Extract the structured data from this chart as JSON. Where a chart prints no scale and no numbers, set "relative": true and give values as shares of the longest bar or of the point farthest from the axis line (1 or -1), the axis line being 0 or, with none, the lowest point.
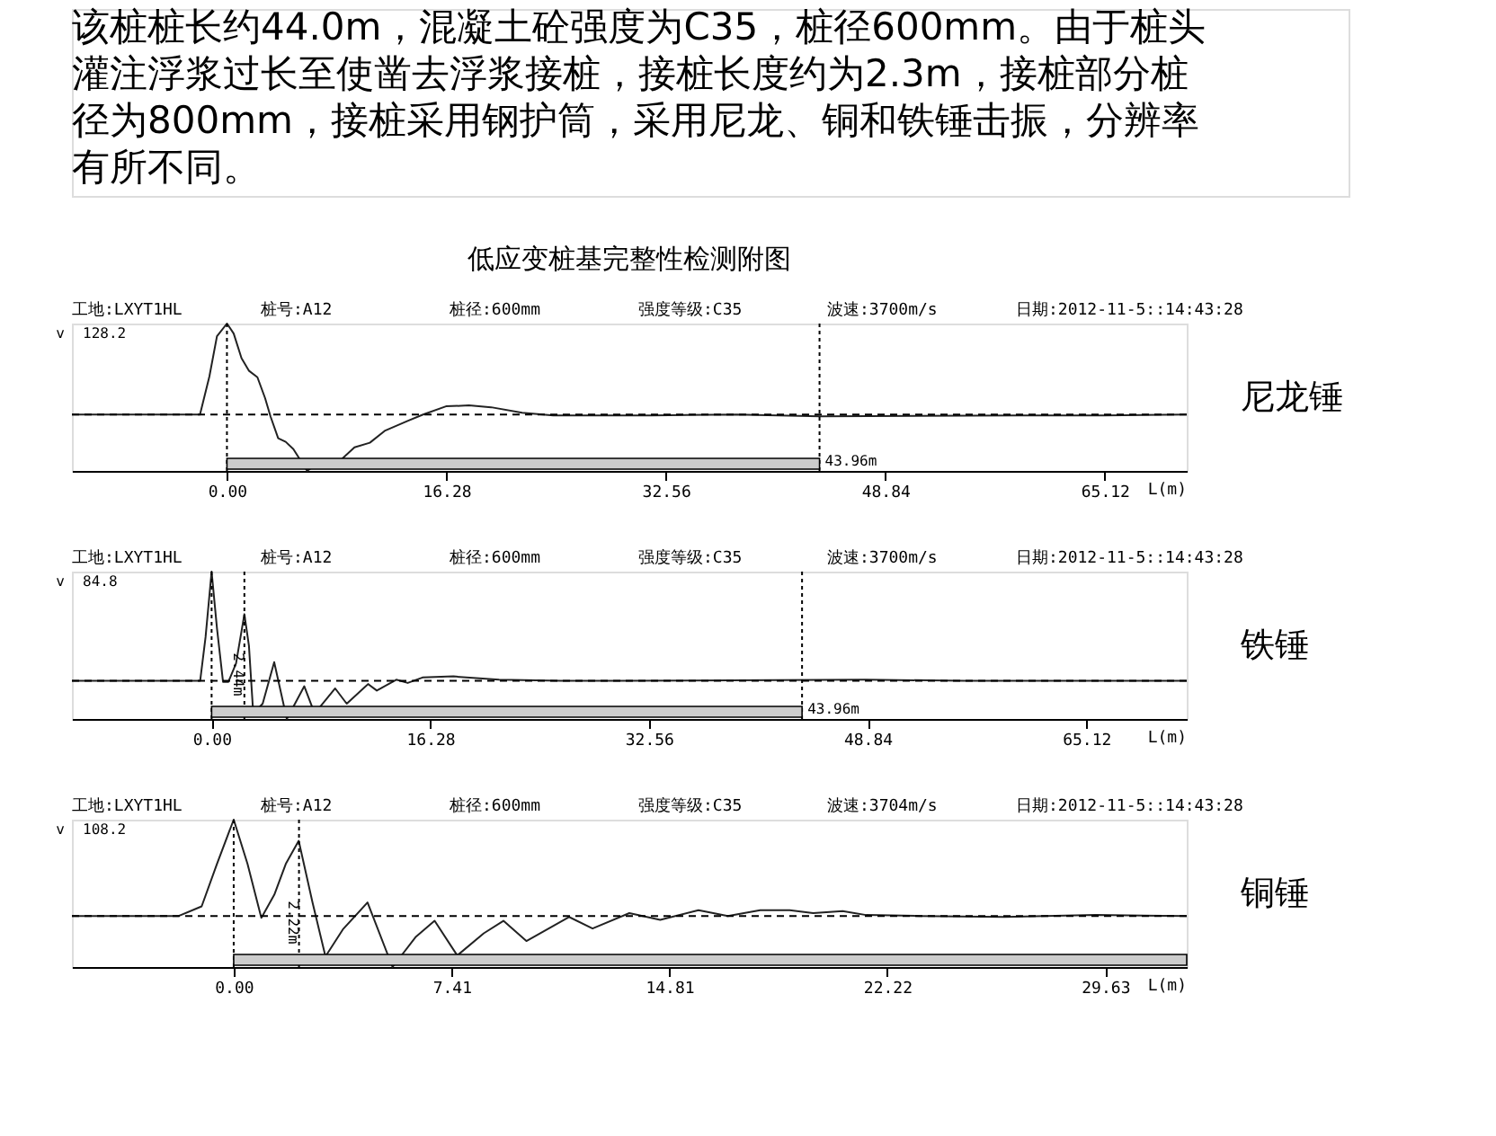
{
  "chart_data": [
    {
      "type": "other",
      "annotations": [
        "该桩桩长约44.0m，混凝土砼强度为C35，桩径600mm。由于桩头",
        "灌注浮浆过长至使凿去浮浆接桩，接桩长度约为2.3m，接桩部分桩",
        "径为800mm，接桩采用钢护筒，采用尼龙、铜和铁锤击振，分辨率",
        "有所不同。"
      ]
    },
    {
      "type": "line",
      "title": "低应变桩基完整性检测附图",
      "relative": true,
      "xlabel": "L(m)",
      "ylabel": "v",
      "annotations": [
        "工地:LXYT1HL",
        "桩号:A12",
        "桩径:600mm",
        "强度等级:C35",
        "波速:3700m/s",
        "日期:2012-11-5::14:43:28",
        "128.2",
        "尼龙锤"
      ],
      "xlim": [
        -11.5,
        71.2
      ],
      "xticks": [
        {
          "value": 0,
          "label": "0.00"
        },
        16.28,
        32.56,
        48.84,
        65.12
      ],
      "grid": false,
      "marker": "none",
      "line_style": "solid",
      "ref_lines": [
        {
          "axis": "x",
          "value": 0,
          "line_style": "dotted"
        },
        {
          "axis": "x",
          "value": 43.96,
          "line_style": "dotted"
        },
        {
          "axis": "y",
          "value": 0,
          "line_style": "dashed"
        }
      ],
      "bands": [
        {
          "axis": "x",
          "from": 0,
          "to": 43.96,
          "label": "43.96m"
        }
      ],
      "series": [
        {
          "color": "#222222",
          "x": [
            -11.5,
            -2.0,
            -1.3,
            -0.74,
            0,
            0.5,
            1.08,
            1.64,
            2.26,
            2.83,
            3.23,
            3.8,
            4.36,
            4.93,
            5.95,
            6.6,
            7.36,
            8.3,
            9.46,
            10.6,
            11.7,
            13.4,
            14.55,
            16.25,
            17.95,
            19.6,
            21.9,
            24.2,
            31.5,
            37.8,
            44.0,
            58.7,
            65.0,
            71.2
          ],
          "values": [
            0,
            0,
            0.42,
            0.86,
            1.0,
            0.89,
            0.62,
            0.48,
            0.41,
            0.18,
            -0.02,
            -0.26,
            -0.3,
            -0.38,
            -0.62,
            -0.55,
            -0.5,
            -0.52,
            -0.36,
            -0.31,
            -0.18,
            -0.07,
            0,
            0.09,
            0.1,
            0.08,
            0.02,
            -0.01,
            -0.01,
            0,
            -0.02,
            -0.01,
            -0.01,
            0
          ]
        }
      ]
    },
    {
      "type": "line",
      "relative": true,
      "xlabel": "L(m)",
      "ylabel": "v",
      "annotations": [
        "工地:LXYT1HL",
        "桩号:A12",
        "桩径:600mm",
        "强度等级:C35",
        "波速:3700m/s",
        "日期:2012-11-5::14:43:28",
        "84.8",
        "铁锤"
      ],
      "xlim": [
        -10.4,
        72.6
      ],
      "xticks": [
        {
          "value": 0,
          "label": "0.00"
        },
        16.28,
        32.56,
        48.84,
        65.12
      ],
      "grid": false,
      "marker": "none",
      "line_style": "solid",
      "ref_lines": [
        {
          "axis": "x",
          "value": 0,
          "line_style": "dotted"
        },
        {
          "axis": "x",
          "value": 2.44,
          "label": "2.44m",
          "line_style": "dotted"
        },
        {
          "axis": "x",
          "value": 43.96,
          "line_style": "dotted"
        },
        {
          "axis": "y",
          "value": 0,
          "line_style": "dashed"
        }
      ],
      "bands": [
        {
          "axis": "x",
          "from": 0,
          "to": 43.96,
          "label": "43.96m"
        }
      ],
      "series": [
        {
          "color": "#222222",
          "x": [
            -10.4,
            -0.85,
            -0.45,
            0,
            0.4,
            0.85,
            1.25,
            1.82,
            2.44,
            2.78,
            3.1,
            3.8,
            4.66,
            5.6,
            6.9,
            7.67,
            9.2,
            10.06,
            11.65,
            12.3,
            13.75,
            14.6,
            15.7,
            18.0,
            21.4,
            26.0,
            30.5,
            48.7,
            56.0,
            72.6
          ],
          "values": [
            0,
            0,
            0.4,
            1.0,
            0.48,
            -0.01,
            -0.01,
            0.16,
            0.61,
            0.32,
            -0.3,
            -0.21,
            0.17,
            -0.35,
            -0.05,
            -0.3,
            -0.07,
            -0.21,
            -0.03,
            -0.09,
            0.01,
            -0.02,
            0.03,
            0.04,
            0.01,
            0,
            0,
            0.01,
            0,
            0
          ]
        }
      ]
    },
    {
      "type": "line",
      "relative": true,
      "xlabel": "L(m)",
      "ylabel": "v",
      "annotations": [
        "工地:LXYT1HL",
        "桩号:A12",
        "桩径:600mm",
        "强度等级:C35",
        "波速:3704m/s",
        "日期:2012-11-5::14:43:28",
        "108.2",
        "铜锤"
      ],
      "xlim": [
        -5.5,
        32.4
      ],
      "xticks": [
        {
          "value": 0,
          "label": "0.00"
        },
        7.41,
        14.81,
        22.22,
        29.63
      ],
      "grid": false,
      "marker": "none",
      "line_style": "solid",
      "ref_lines": [
        {
          "axis": "x",
          "value": 0,
          "line_style": "dotted"
        },
        {
          "axis": "x",
          "value": 2.22,
          "label": "2.22m",
          "line_style": "dotted"
        },
        {
          "axis": "y",
          "value": 0,
          "line_style": "dashed"
        }
      ],
      "bands": [
        {
          "axis": "x",
          "from": 0,
          "to": 32.4
        }
      ],
      "series": [
        {
          "color": "#222222",
          "x": [
            -5.5,
            -1.87,
            -1.09,
            -0.57,
            0,
            0.47,
            0.94,
            1.38,
            1.77,
            2.21,
            2.68,
            3.12,
            3.71,
            4.55,
            5.4,
            6.18,
            6.83,
            7.6,
            8.5,
            9.17,
            9.95,
            11.4,
            12.2,
            13.45,
            14.5,
            15.8,
            16.8,
            17.9,
            18.9,
            19.7,
            20.7,
            21.5,
            23.3,
            26.2,
            29.3,
            32.4
          ],
          "values": [
            0,
            0,
            0.1,
            0.54,
            1.0,
            0.54,
            -0.02,
            0.22,
            0.54,
            0.78,
            0.14,
            -0.42,
            -0.14,
            0.14,
            -0.53,
            -0.22,
            -0.05,
            -0.41,
            -0.18,
            -0.05,
            -0.26,
            -0.01,
            -0.13,
            0.03,
            -0.04,
            0.06,
            0,
            0.06,
            0.06,
            0.03,
            0.05,
            0.01,
            0,
            -0.01,
            0.01,
            0
          ]
        }
      ]
    }
  ]
}
